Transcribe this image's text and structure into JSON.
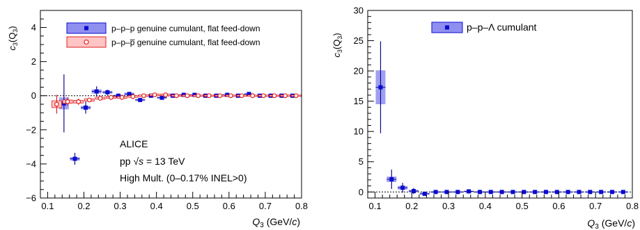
{
  "colors": {
    "ppp": "#0b0bd0",
    "ppp_fill": "#8f8ff0",
    "ppp_dark": "#0a0a8c",
    "ppap": "#e02020",
    "ppap_fill": "#ffc4c4"
  },
  "chart_data": [
    {
      "type": "scatter",
      "ylabel_base": "c",
      "ylabel_sub": "3",
      "ylabel_arg": "(Q",
      "ylabel_argsub": "3",
      "ylabel_close": ")",
      "xlabel_base": "Q",
      "xlabel_sub": "3",
      "xlabel_unit_pre": " (GeV/",
      "xlabel_unit_var": "c",
      "xlabel_unit_post": ")",
      "xlim": [
        0.08,
        0.8
      ],
      "ylim": [
        -6,
        5
      ],
      "x_ticks": [
        "0.1",
        "0.2",
        "0.3",
        "0.4",
        "0.5",
        "0.6",
        "0.7",
        "0.8"
      ],
      "y_ticks": [
        "−6",
        "−4",
        "−2",
        "0",
        "2",
        "4"
      ],
      "zero_line": true,
      "grid": false,
      "legend_position": "top-right",
      "annotation": {
        "line1": "ALICE",
        "line2_pre": "pp ",
        "line2_sqrt": "√",
        "line2_var": "s",
        "line2_post": " = 13 TeV",
        "line3": "High Mult. (0–0.17% INEL>0)"
      },
      "series": [
        {
          "name": "p–p–p genuine cumulant, flat feed-down",
          "marker": "square",
          "color": "ppp",
          "x": [
            0.145,
            0.175,
            0.205,
            0.235,
            0.265,
            0.295,
            0.325,
            0.355,
            0.385,
            0.415,
            0.445,
            0.475,
            0.505,
            0.535,
            0.565,
            0.595,
            0.625,
            0.655,
            0.685,
            0.715,
            0.745,
            0.775
          ],
          "y": [
            -0.45,
            -3.7,
            -0.7,
            0.25,
            0.2,
            0.0,
            0.1,
            -0.25,
            0.0,
            -0.12,
            0.0,
            0.05,
            0.05,
            0.0,
            0.0,
            0.05,
            0.0,
            0.1,
            0.0,
            0.0,
            0.0,
            0.0
          ],
          "stat": [
            1.7,
            0.35,
            0.35,
            0.3,
            0.15,
            0.12,
            0.12,
            0.1,
            0.08,
            0.07,
            0.06,
            0.05,
            0.05,
            0.04,
            0.04,
            0.04,
            0.04,
            0.04,
            0.04,
            0.04,
            0.04,
            0.04
          ],
          "sys": [
            0.35,
            0.1,
            0.1,
            0.12,
            0.08,
            0.06,
            0.08,
            0.06,
            0.04,
            0.05,
            0.03,
            0.03,
            0.03,
            0.03,
            0.03,
            0.03,
            0.03,
            0.03,
            0.03,
            0.03,
            0.03,
            0.03
          ]
        },
        {
          "name": "p–p–p̅ genuine cumulant, flat feed-down",
          "marker": "open-circle",
          "color": "ppap",
          "x": [
            0.125,
            0.155,
            0.185,
            0.215,
            0.245,
            0.275,
            0.305,
            0.335,
            0.365,
            0.395,
            0.425,
            0.455,
            0.485,
            0.515,
            0.545,
            0.575,
            0.605,
            0.635,
            0.665,
            0.695,
            0.725,
            0.755,
            0.785
          ],
          "y": [
            -0.5,
            -0.35,
            -0.35,
            -0.25,
            -0.15,
            -0.1,
            -0.1,
            -0.05,
            0.0,
            0.05,
            0.05,
            0.0,
            0.0,
            0.0,
            0.0,
            0.0,
            0.0,
            0.0,
            0.0,
            0.0,
            0.0,
            0.0,
            0.0
          ],
          "stat": [
            0.55,
            0.25,
            0.18,
            0.12,
            0.1,
            0.08,
            0.07,
            0.06,
            0.05,
            0.05,
            0.04,
            0.04,
            0.03,
            0.03,
            0.03,
            0.03,
            0.03,
            0.03,
            0.03,
            0.03,
            0.03,
            0.03,
            0.03
          ],
          "sys": [
            0.2,
            0.1,
            0.08,
            0.07,
            0.06,
            0.05,
            0.05,
            0.05,
            0.05,
            0.05,
            0.05,
            0.04,
            0.04,
            0.04,
            0.04,
            0.04,
            0.04,
            0.04,
            0.04,
            0.04,
            0.04,
            0.04,
            0.04
          ]
        }
      ]
    },
    {
      "type": "scatter",
      "ylabel_base": "c",
      "ylabel_sub": "3",
      "ylabel_arg": "(Q",
      "ylabel_argsub": "3",
      "ylabel_close": ")",
      "xlabel_base": "Q",
      "xlabel_sub": "3",
      "xlabel_unit_pre": " (GeV/",
      "xlabel_unit_var": "c",
      "xlabel_unit_post": ")",
      "xlim": [
        0.08,
        0.8
      ],
      "ylim": [
        -1,
        30
      ],
      "x_ticks": [
        "0.1",
        "0.2",
        "0.3",
        "0.4",
        "0.5",
        "0.6",
        "0.7",
        "0.8"
      ],
      "y_ticks": [
        "0",
        "5",
        "10",
        "15",
        "20",
        "25",
        "30"
      ],
      "zero_line": true,
      "grid": false,
      "legend_position": "top-center",
      "series": [
        {
          "name": "p–p–Λ cumulant",
          "marker": "square",
          "color": "ppp",
          "x": [
            0.115,
            0.145,
            0.175,
            0.205,
            0.235,
            0.265,
            0.295,
            0.325,
            0.355,
            0.385,
            0.415,
            0.445,
            0.475,
            0.505,
            0.535,
            0.565,
            0.595,
            0.625,
            0.655,
            0.685,
            0.715,
            0.745,
            0.775
          ],
          "y": [
            17.3,
            2.1,
            0.7,
            0.15,
            -0.3,
            0.0,
            0.0,
            0.0,
            0.1,
            0.0,
            0.0,
            0.0,
            0.0,
            0.0,
            0.0,
            0.0,
            0.0,
            0.0,
            0.0,
            0.0,
            0.0,
            0.0,
            0.0
          ],
          "stat": [
            7.6,
            1.6,
            0.8,
            0.5,
            0.3,
            0.2,
            0.15,
            0.15,
            0.12,
            0.1,
            0.1,
            0.1,
            0.1,
            0.1,
            0.1,
            0.1,
            0.1,
            0.1,
            0.1,
            0.1,
            0.1,
            0.1,
            0.1
          ],
          "sys": [
            2.8,
            0.45,
            0.3,
            0.2,
            0.15,
            0.12,
            0.1,
            0.1,
            0.1,
            0.1,
            0.1,
            0.1,
            0.1,
            0.1,
            0.1,
            0.1,
            0.1,
            0.1,
            0.1,
            0.1,
            0.1,
            0.1,
            0.1
          ]
        }
      ]
    }
  ]
}
